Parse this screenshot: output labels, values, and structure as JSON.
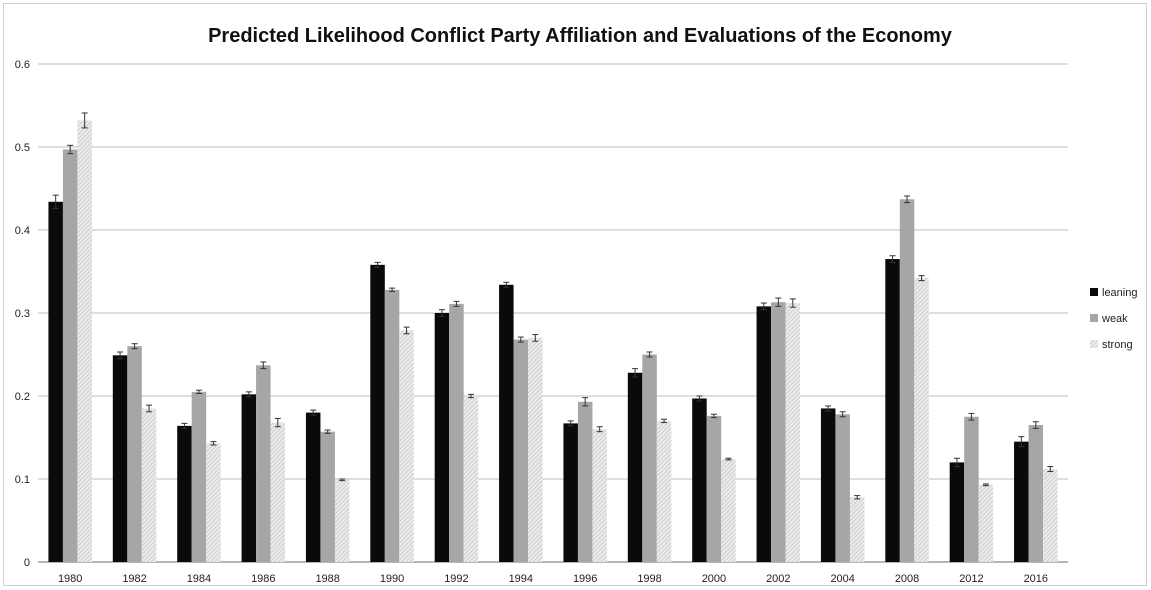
{
  "chart_data": {
    "type": "bar",
    "title": "Predicted Likelihood Conflict Party Affiliation and Evaluations of the Economy",
    "xlabel": "",
    "ylabel": "",
    "ylim": [
      0,
      0.6
    ],
    "yticks": [
      0,
      0.1,
      0.2,
      0.3,
      0.4,
      0.5,
      0.6
    ],
    "ytick_labels": [
      "0",
      "0.1",
      "0.2",
      "0.3",
      "0.4",
      "0.5",
      "0.6"
    ],
    "grid": true,
    "legend_position": "right",
    "categories": [
      "1980",
      "1982",
      "1984",
      "1986",
      "1988",
      "1990",
      "1992",
      "1994",
      "1996",
      "1998",
      "2000",
      "2002",
      "2004",
      "2008",
      "2012",
      "2016"
    ],
    "series": [
      {
        "name": "leaning",
        "color": "#0a0a0a",
        "pattern": "solid",
        "values": [
          0.434,
          0.249,
          0.164,
          0.202,
          0.18,
          0.358,
          0.3,
          0.334,
          0.167,
          0.228,
          0.197,
          0.308,
          0.185,
          0.365,
          0.12,
          0.145
        ],
        "errors": [
          0.008,
          0.004,
          0.003,
          0.003,
          0.003,
          0.003,
          0.004,
          0.003,
          0.003,
          0.005,
          0.003,
          0.004,
          0.003,
          0.004,
          0.005,
          0.006
        ]
      },
      {
        "name": "weak",
        "color": "#a6a6a6",
        "pattern": "solid",
        "values": [
          0.497,
          0.26,
          0.205,
          0.237,
          0.157,
          0.328,
          0.311,
          0.268,
          0.193,
          0.25,
          0.176,
          0.313,
          0.178,
          0.437,
          0.175,
          0.165
        ],
        "errors": [
          0.005,
          0.003,
          0.002,
          0.004,
          0.002,
          0.002,
          0.003,
          0.003,
          0.005,
          0.003,
          0.002,
          0.005,
          0.003,
          0.004,
          0.004,
          0.004
        ]
      },
      {
        "name": "strong",
        "color": "#d9d9d9",
        "pattern": "hatched",
        "values": [
          0.532,
          0.185,
          0.143,
          0.168,
          0.099,
          0.279,
          0.2,
          0.27,
          0.16,
          0.17,
          0.124,
          0.312,
          0.078,
          0.342,
          0.093,
          0.112
        ],
        "errors": [
          0.009,
          0.004,
          0.002,
          0.005,
          0.001,
          0.004,
          0.002,
          0.004,
          0.003,
          0.002,
          0.001,
          0.005,
          0.002,
          0.003,
          0.001,
          0.003
        ]
      }
    ]
  }
}
